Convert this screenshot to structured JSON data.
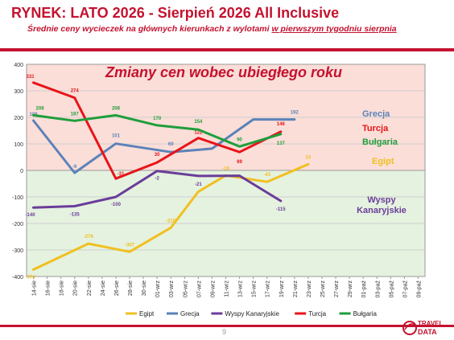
{
  "header": {
    "title": "RYNEK: LATO 2026 - Sierpień 2026 All Inclusive",
    "subtitle_prefix": "Średnie ceny wycieczek na głównych kierunkach  z wylotami ",
    "subtitle_underlined": "w pierwszym tygodniu sierpnia"
  },
  "footer": {
    "page_number": "9",
    "logo_top": "TRAVEL",
    "logo_bottom": "DATA"
  },
  "colors": {
    "accent": "#c4122f",
    "positive_zone": "#fbded8",
    "negative_zone": "#e5f2df",
    "Egipt": "#f0c020",
    "Grecja": "#5b82b8",
    "Wyspy Kanaryjskie": "#6a3d99",
    "Turcja": "#e8141a",
    "Bułgaria": "#1f9e3c"
  },
  "chart_data": {
    "type": "line",
    "title": "Zmiany cen wobec ubiegłego roku",
    "ylim": [
      -400,
      400
    ],
    "y_ticks": [
      -400,
      -300,
      -200,
      -100,
      0,
      100,
      200,
      300,
      400
    ],
    "categories": [
      "14-sie",
      "16-sie",
      "18-sie",
      "20-sie",
      "22-sie",
      "24-sie",
      "26-sie",
      "28-sie",
      "30-sie",
      "01-wrz",
      "03-wrz",
      "05-wrz",
      "07-wrz",
      "09-wrz",
      "11-wrz",
      "13-wrz",
      "15-wrz",
      "17-wrz",
      "19-wrz",
      "21-wrz",
      "23-wrz",
      "25-wrz",
      "27-wrz",
      "29-wrz",
      "01-paź",
      "03-paź",
      "05-paź",
      "07-paź",
      "09-paź"
    ],
    "legend_position": "bottom",
    "series": [
      {
        "name": "Egipt",
        "points": [
          [
            "14-sie",
            -374
          ],
          [
            "22-sie",
            -276
          ],
          [
            "28-sie",
            -307
          ],
          [
            "03-wrz",
            -216
          ],
          [
            "07-wrz",
            -80
          ],
          [
            "11-wrz",
            -19
          ],
          [
            "17-wrz",
            -43
          ],
          [
            "23-wrz",
            23
          ]
        ],
        "labels": [
          [
            "14-sie",
            "-374"
          ],
          [
            "22-sie",
            "-276"
          ],
          [
            "28-sie",
            "-307"
          ],
          [
            "03-wrz",
            "-216"
          ],
          [
            "11-wrz",
            "-19"
          ],
          [
            "17-wrz",
            "-43"
          ],
          [
            "23-wrz",
            "23"
          ]
        ],
        "end_label": "Egipt"
      },
      {
        "name": "Grecja",
        "points": [
          [
            "14-sie",
            188
          ],
          [
            "20-sie",
            -9
          ],
          [
            "26-sie",
            101
          ],
          [
            "03-wrz",
            69
          ],
          [
            "09-wrz",
            82
          ],
          [
            "15-wrz",
            192
          ],
          [
            "21-wrz",
            192
          ]
        ],
        "labels": [
          [
            "14-sie",
            "188"
          ],
          [
            "20-sie",
            "-9"
          ],
          [
            "26-sie",
            "101"
          ],
          [
            "03-wrz",
            "69"
          ],
          [
            "21-wrz",
            "192"
          ]
        ],
        "end_label": "Grecja"
      },
      {
        "name": "Wyspy Kanaryjskie",
        "points": [
          [
            "14-sie",
            -140
          ],
          [
            "20-sie",
            -135
          ],
          [
            "26-sie",
            -100
          ],
          [
            "01-wrz",
            -2
          ],
          [
            "07-wrz",
            -21
          ],
          [
            "13-wrz",
            -20
          ],
          [
            "19-wrz",
            -115
          ]
        ],
        "labels": [
          [
            "14-sie",
            "-140"
          ],
          [
            "20-sie",
            "-135"
          ],
          [
            "26-sie",
            "-100"
          ],
          [
            "01-wrz",
            "-2"
          ],
          [
            "07-wrz",
            "-21"
          ],
          [
            "19-wrz",
            "-115"
          ]
        ],
        "end_label": "Wyspy Kanaryjskie"
      },
      {
        "name": "Turcja",
        "points": [
          [
            "14-sie",
            331
          ],
          [
            "20-sie",
            274
          ],
          [
            "26-sie",
            -31
          ],
          [
            "01-wrz",
            30
          ],
          [
            "07-wrz",
            122
          ],
          [
            "13-wrz",
            69
          ],
          [
            "19-wrz",
            146
          ]
        ],
        "labels": [
          [
            "14-sie",
            "331"
          ],
          [
            "20-sie",
            "274"
          ],
          [
            "26-sie",
            "-31"
          ],
          [
            "01-wrz",
            "30"
          ],
          [
            "07-wrz",
            "122"
          ],
          [
            "13-wrz",
            "69"
          ],
          [
            "19-wrz",
            "146"
          ]
        ],
        "end_label": "Turcja"
      },
      {
        "name": "Bułgaria",
        "points": [
          [
            "14-sie",
            208
          ],
          [
            "20-sie",
            187
          ],
          [
            "26-sie",
            208
          ],
          [
            "01-wrz",
            170
          ],
          [
            "07-wrz",
            154
          ],
          [
            "13-wrz",
            90
          ],
          [
            "19-wrz",
            137
          ]
        ],
        "labels": [
          [
            "14-sie",
            "208"
          ],
          [
            "20-sie",
            "187"
          ],
          [
            "26-sie",
            "208"
          ],
          [
            "01-wrz",
            "170"
          ],
          [
            "07-wrz",
            "154"
          ],
          [
            "13-wrz",
            "90"
          ],
          [
            "19-wrz",
            "137"
          ]
        ],
        "end_label": "Bułgaria"
      }
    ]
  }
}
